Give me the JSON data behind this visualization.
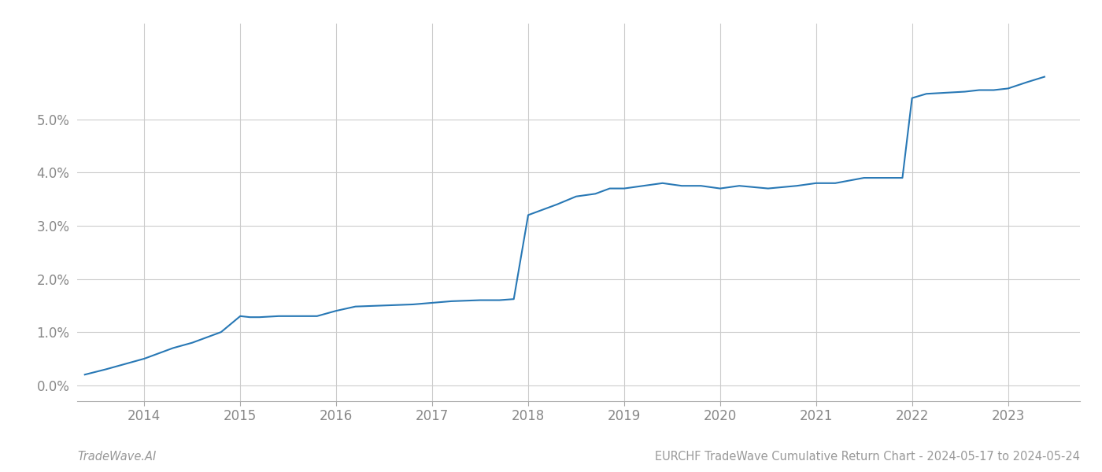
{
  "x_years": [
    2013.38,
    2013.6,
    2013.8,
    2014.0,
    2014.15,
    2014.3,
    2014.5,
    2014.65,
    2014.8,
    2015.0,
    2015.1,
    2015.2,
    2015.4,
    2015.6,
    2015.8,
    2016.0,
    2016.2,
    2016.5,
    2016.8,
    2017.0,
    2017.2,
    2017.5,
    2017.7,
    2017.85,
    2018.0,
    2018.15,
    2018.3,
    2018.5,
    2018.7,
    2018.85,
    2019.0,
    2019.2,
    2019.4,
    2019.6,
    2019.8,
    2020.0,
    2020.2,
    2020.5,
    2020.8,
    2021.0,
    2021.2,
    2021.5,
    2021.7,
    2021.9,
    2022.0,
    2022.15,
    2022.35,
    2022.55,
    2022.7,
    2022.85,
    2023.0,
    2023.2,
    2023.38
  ],
  "y_values": [
    0.002,
    0.003,
    0.004,
    0.005,
    0.006,
    0.007,
    0.008,
    0.009,
    0.01,
    0.013,
    0.0128,
    0.0128,
    0.013,
    0.013,
    0.013,
    0.014,
    0.0148,
    0.015,
    0.0152,
    0.0155,
    0.0158,
    0.016,
    0.016,
    0.0162,
    0.032,
    0.033,
    0.034,
    0.0355,
    0.036,
    0.037,
    0.037,
    0.0375,
    0.038,
    0.0375,
    0.0375,
    0.037,
    0.0375,
    0.037,
    0.0375,
    0.038,
    0.038,
    0.039,
    0.039,
    0.039,
    0.054,
    0.0548,
    0.055,
    0.0552,
    0.0555,
    0.0555,
    0.0558,
    0.057,
    0.058
  ],
  "line_color": "#2878b5",
  "line_width": 1.5,
  "background_color": "#ffffff",
  "grid_color": "#cccccc",
  "tick_color": "#888888",
  "xlim": [
    2013.3,
    2023.75
  ],
  "ylim": [
    -0.003,
    0.068
  ],
  "yticks": [
    0.0,
    0.01,
    0.02,
    0.03,
    0.04,
    0.05
  ],
  "xticks": [
    2014,
    2015,
    2016,
    2017,
    2018,
    2019,
    2020,
    2021,
    2022,
    2023
  ],
  "footer_left": "TradeWave.AI",
  "footer_right": "EURCHF TradeWave Cumulative Return Chart - 2024-05-17 to 2024-05-24",
  "footer_color": "#999999",
  "footer_fontsize": 10.5,
  "tick_fontsize": 12
}
